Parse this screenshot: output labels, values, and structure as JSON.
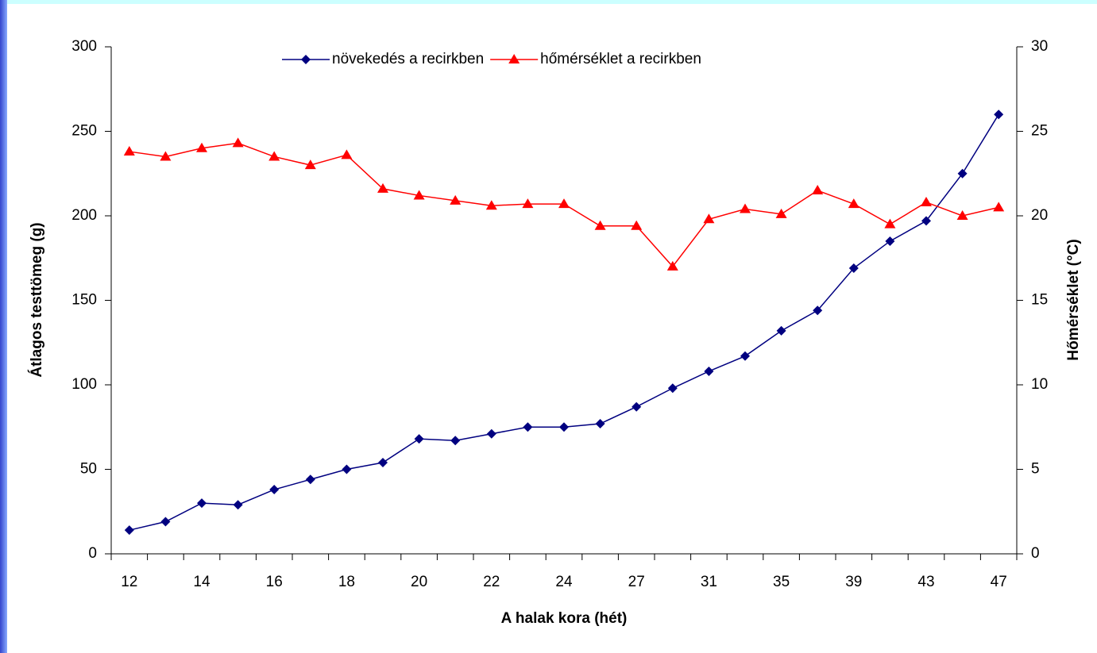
{
  "chart_data": {
    "type": "line",
    "x_label": "A halak kora (hét)",
    "y_label": "Átlagos testtömeg (g)",
    "y2_label": "Hőmérséklet (°C)",
    "categories": [
      "12",
      null,
      "14",
      null,
      "16",
      null,
      "18",
      null,
      "20",
      null,
      "22",
      null,
      "24",
      null,
      "27",
      null,
      "31",
      null,
      "35",
      null,
      "39",
      null,
      "43",
      null,
      "47"
    ],
    "series": [
      {
        "name": "növekedés a recirkben",
        "color": "#000080",
        "marker": "diamond",
        "values": [
          14,
          19,
          30,
          29,
          38,
          44,
          50,
          54,
          68,
          67,
          71,
          75,
          75,
          77,
          87,
          98,
          108,
          117,
          132,
          144,
          169,
          185,
          197,
          225,
          260
        ]
      },
      {
        "name": "hőmérséklet a recirkben",
        "color": "#ff0000",
        "marker": "triangle",
        "axis": "y2",
        "values": [
          23.8,
          23.5,
          24,
          24.3,
          23.5,
          23,
          23.6,
          21.6,
          21.2,
          20.9,
          20.6,
          20.7,
          20.7,
          19.4,
          19.4,
          17,
          19.8,
          20.4,
          20.1,
          21.5,
          20.7,
          19.5,
          20.8,
          20,
          20.5
        ]
      }
    ],
    "ylim": [
      0,
      300
    ],
    "yticks": [
      0,
      50,
      100,
      150,
      200,
      250,
      300
    ],
    "y2lim": [
      0,
      30
    ],
    "y2ticks": [
      0,
      5,
      10,
      15,
      20,
      25,
      30
    ],
    "legend": "top"
  }
}
